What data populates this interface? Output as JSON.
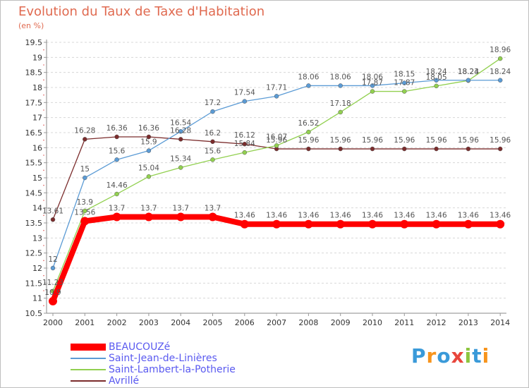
{
  "header": {
    "title": "Evolution du Taux de Taxe d'Habitation",
    "unit": "(en %)"
  },
  "chart_data": {
    "type": "line",
    "title": "Evolution du Taux de Taxe d'Habitation",
    "ylabel": "(en %)",
    "xlabel": "",
    "ylim": [
      10.5,
      19.5
    ],
    "ytick_step": 0.5,
    "grid": "horizontal dashed",
    "legend_position": "bottom-left",
    "x": [
      "2000",
      "2001",
      "2002",
      "2003",
      "2004",
      "2005",
      "2006",
      "2007",
      "2008",
      "2009",
      "2010",
      "2011",
      "2012",
      "2013",
      "2014"
    ],
    "series": [
      {
        "name": "BEAUCOUZé",
        "color": "#ff0000",
        "values": [
          10.9,
          13.56,
          13.7,
          13.7,
          13.7,
          13.7,
          13.46,
          13.46,
          13.46,
          13.46,
          13.46,
          13.46,
          13.46,
          13.46,
          13.46
        ]
      },
      {
        "name": "Saint-Jean-de-Linières",
        "color": "#5b9bd5",
        "values": [
          12,
          15,
          15.6,
          15.9,
          16.54,
          17.2,
          17.54,
          17.71,
          18.06,
          18.06,
          18.06,
          18.15,
          18.24,
          18.24,
          18.24
        ]
      },
      {
        "name": "Saint-Lambert-la-Potherie",
        "color": "#92d050",
        "values": [
          11.23,
          13.9,
          14.46,
          15.04,
          15.34,
          15.6,
          15.84,
          16.07,
          16.52,
          17.18,
          17.87,
          17.87,
          18.05,
          18.23,
          18.96
        ]
      },
      {
        "name": "Avrillé",
        "color": "#7b2c2c",
        "values": [
          13.61,
          16.28,
          16.36,
          16.36,
          16.28,
          16.2,
          16.12,
          15.96,
          15.96,
          15.96,
          15.96,
          15.96,
          15.96,
          15.96,
          15.96
        ]
      }
    ],
    "labels": [
      [
        "10.9",
        "13.56",
        "13.7",
        "13.7",
        "13.7",
        "13.7",
        "13.46",
        "13.46",
        "13.46",
        "13.46",
        "13.46",
        "13.46",
        "13.46",
        "13.46",
        "13.46"
      ],
      [
        "12",
        "15",
        "15.6",
        "15.9",
        "16.54",
        "17.2",
        "17.54",
        "17.71",
        "18.06",
        "18.06",
        "18.06",
        "18.15",
        "18.24",
        "18.24",
        "18.24"
      ],
      [
        "11.23",
        "13.9",
        "14.46",
        "15.04",
        "15.34",
        "15.6",
        "15.84",
        "16.07",
        "16.52",
        "17.18",
        "17.87",
        "17.87",
        "18.05",
        "18.23",
        "18.96"
      ],
      [
        "13.61",
        "16.28",
        "16.36",
        "16.36",
        "16.28",
        "16.2",
        "16.12",
        "15.96",
        "15.96",
        "15.96",
        "15.96",
        "15.96",
        "15.96",
        "15.96",
        "15.96"
      ]
    ]
  },
  "legend": {
    "items": [
      {
        "label": "BEAUCOUZé"
      },
      {
        "label": "Saint-Jean-de-Linières"
      },
      {
        "label": "Saint-Lambert-la-Potherie"
      },
      {
        "label": "Avrillé"
      }
    ]
  },
  "logo": {
    "text": "Proxiti",
    "letters": [
      "P",
      "r",
      "o",
      "x",
      "i",
      "t",
      "i"
    ],
    "colors": [
      "#3a9ad9",
      "#f7941d",
      "#3a9ad9",
      "#e8463c",
      "#8dc63f",
      "#3a9ad9",
      "#f7941d"
    ]
  }
}
